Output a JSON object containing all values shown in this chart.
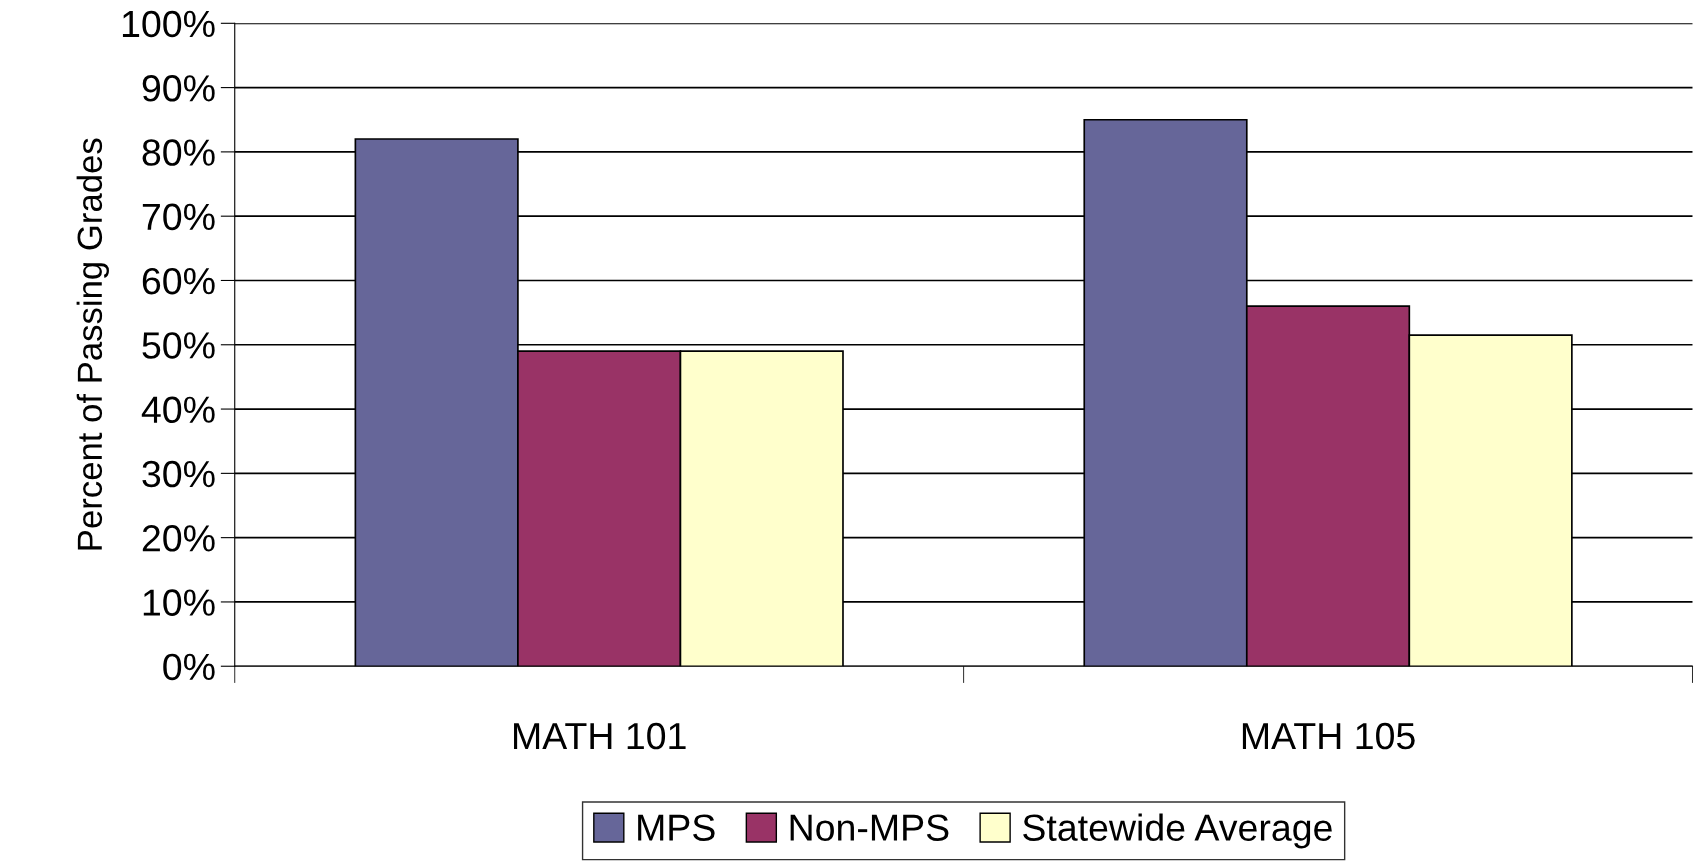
{
  "chart_data": {
    "type": "bar",
    "ylabel": "Percent of Passing Grades",
    "categories": [
      "MATH 101",
      "MATH 105"
    ],
    "series": [
      {
        "name": "MPS",
        "color": "#666699",
        "values": [
          82,
          85
        ]
      },
      {
        "name": "Non-MPS",
        "color": "#993366",
        "values": [
          49,
          56
        ]
      },
      {
        "name": "Statewide Average",
        "color": "#ffffcc",
        "values": [
          49,
          51.5
        ]
      }
    ],
    "ylim": [
      0,
      100
    ],
    "yticks": [
      {
        "value": 0,
        "label": "0%"
      },
      {
        "value": 10,
        "label": "10%"
      },
      {
        "value": 20,
        "label": "20%"
      },
      {
        "value": 30,
        "label": "30%"
      },
      {
        "value": 40,
        "label": "40%"
      },
      {
        "value": 50,
        "label": "50%"
      },
      {
        "value": 60,
        "label": "60%"
      },
      {
        "value": 70,
        "label": "70%"
      },
      {
        "value": 80,
        "label": "80%"
      },
      {
        "value": 90,
        "label": "90%"
      },
      {
        "value": 100,
        "label": "100%"
      }
    ],
    "grid": "y",
    "legend": "bottom"
  }
}
